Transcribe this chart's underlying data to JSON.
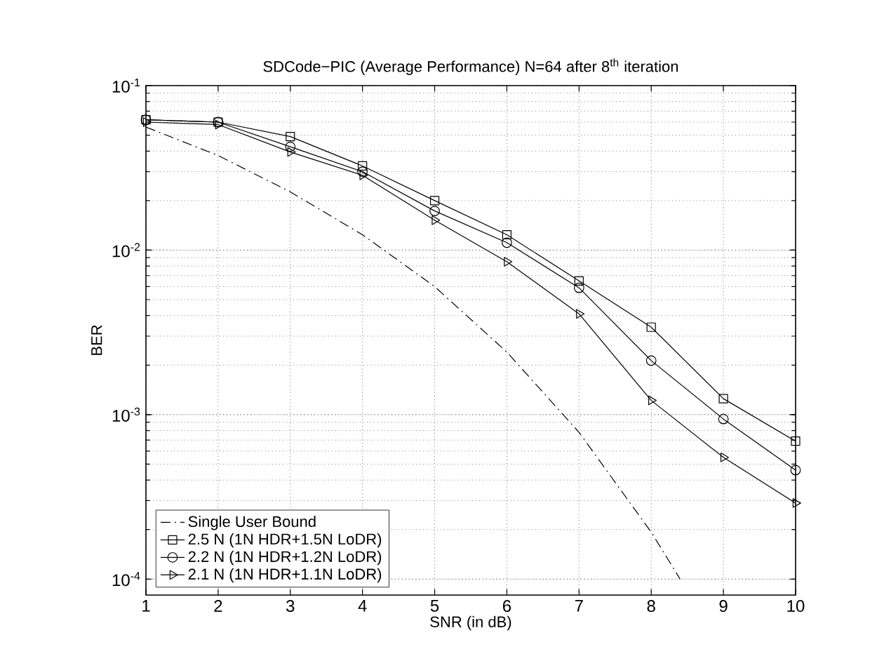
{
  "chart_data": {
    "type": "line",
    "title": "SDCode−PIC (Average Performance) N=64 after 8$^{th}$ iteration",
    "xlabel": "SNR (in dB)",
    "ylabel": "BER",
    "x": [
      1,
      2,
      3,
      4,
      5,
      6,
      7,
      8,
      9,
      10
    ],
    "log": "y",
    "xlim": [
      1,
      10
    ],
    "ylim": [
      8e-05,
      0.1
    ],
    "xticks": [
      1,
      2,
      3,
      4,
      5,
      6,
      7,
      8,
      9,
      10
    ],
    "yticks": [
      {
        "value": 0.0001,
        "label": "10$^{-4}$"
      },
      {
        "value": 0.001,
        "label": "10$^{-3}$"
      },
      {
        "value": 0.01,
        "label": "10$^{-2}$"
      },
      {
        "value": 0.1,
        "label": "10$^{-1}$"
      }
    ],
    "grid": true,
    "legend": "bottom left",
    "series": [
      {
        "name": "Single User Bound",
        "color": "#000000",
        "line_style": "dashdot",
        "marker": "none",
        "x": [
          1,
          2,
          3,
          4,
          5,
          6,
          7,
          8,
          8.4
        ],
        "values": [
          0.056,
          0.0376,
          0.0226,
          0.0124,
          0.006,
          0.0024,
          0.00078,
          0.000193,
          0.0001
        ]
      },
      {
        "name": "2.5 N (1N HDR+1.5N LoDR)",
        "color": "#000000",
        "line_style": "solid",
        "marker": "square",
        "values": [
          0.062,
          0.06,
          0.049,
          0.0325,
          0.02,
          0.0124,
          0.0065,
          0.0034,
          0.00125,
          0.00069
        ]
      },
      {
        "name": "2.2 N (1N HDR+1.2N LoDR)",
        "color": "#000000",
        "line_style": "solid",
        "marker": "circle",
        "values": [
          0.062,
          0.06,
          0.0425,
          0.03,
          0.0173,
          0.0111,
          0.0059,
          0.00213,
          0.00094,
          0.00046
        ]
      },
      {
        "name": "2.1 N (1N HDR+1.1N LoDR)",
        "color": "#000000",
        "line_style": "solid",
        "marker": "triangle",
        "values": [
          0.06,
          0.058,
          0.0395,
          0.0285,
          0.0152,
          0.0085,
          0.0041,
          0.00122,
          0.00055,
          0.00029
        ]
      }
    ]
  }
}
